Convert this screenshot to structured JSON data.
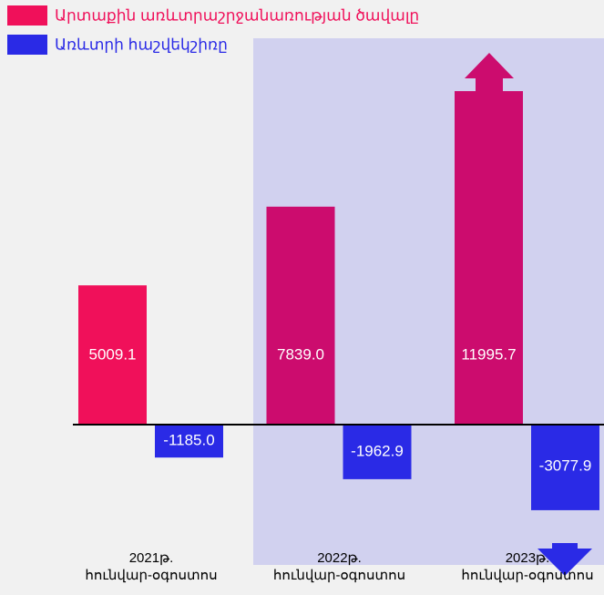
{
  "chart_data": {
    "type": "bar",
    "categories": [
      "2021թ.\nհունվար-օգոստոս",
      "2022թ.\nհունվար-օգոստոս",
      "2023թ.\nհունվար-օգոստոս"
    ],
    "series": [
      {
        "name": "Արտաքին առևտրաշրջանառության ծավալը",
        "color": "#f0105a",
        "colors": [
          "#f0105a",
          "#cc0c6e",
          "#cc0c6e"
        ],
        "values": [
          5009.1,
          7839,
          11995.7
        ],
        "value_labels": [
          "5009.1",
          "7839.0",
          "11995.7"
        ]
      },
      {
        "name": "Առևտրի հաշվեկշիռը",
        "color": "#2a2ae6",
        "colors": [
          "#2a2ae6",
          "#2a2ae6",
          "#2a2ae6"
        ],
        "values": [
          -1185,
          -1962.9,
          -3077.9
        ],
        "value_labels": [
          "-1185.0",
          "-1962.9",
          "-3077.9"
        ]
      }
    ]
  }
}
